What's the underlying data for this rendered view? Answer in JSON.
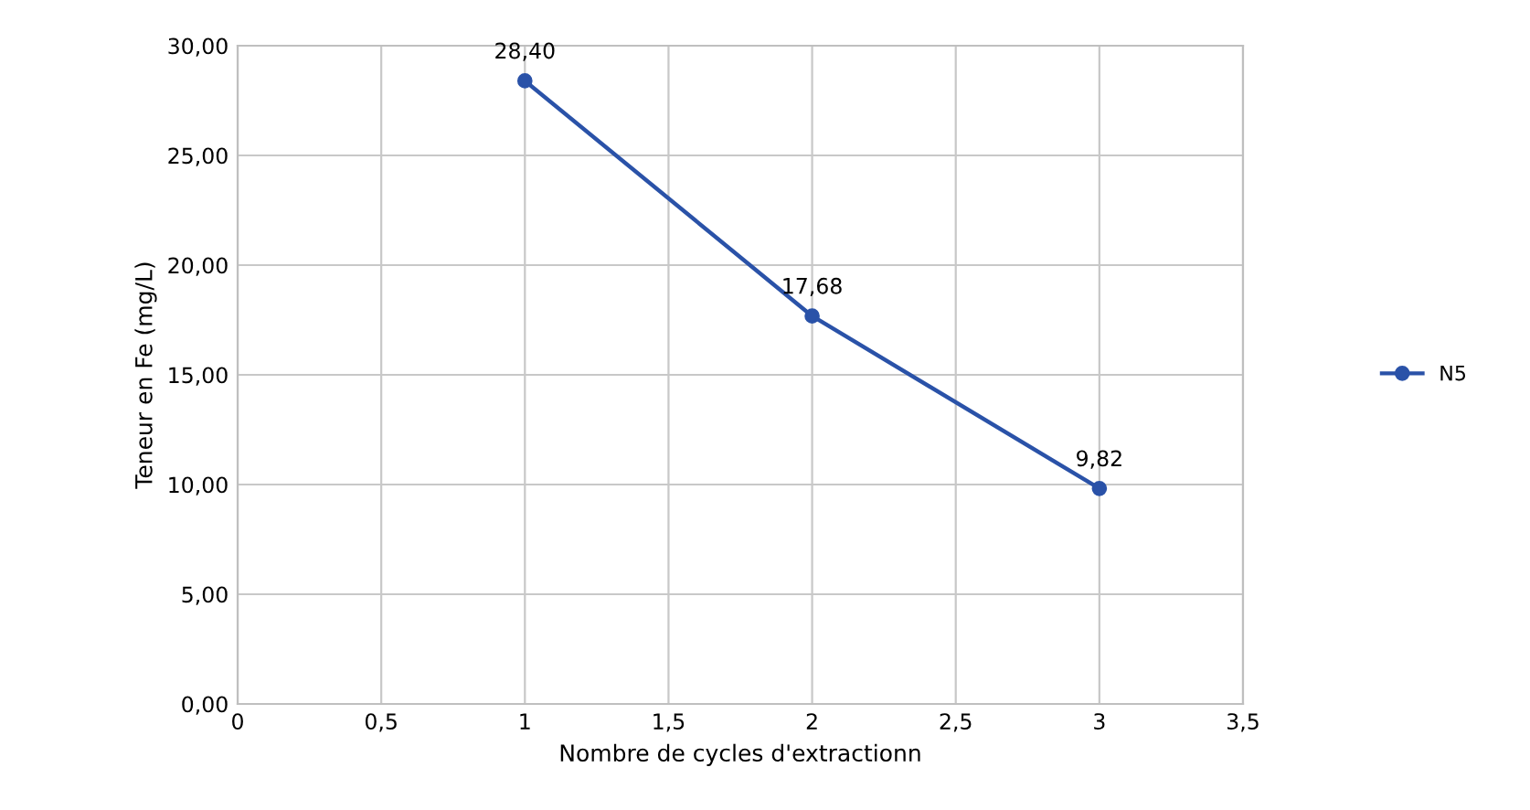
{
  "chart_data": {
    "type": "line",
    "xlabel": "Nombre de cycles d'extractionn",
    "ylabel": "Teneur en Fe (mg/L)",
    "x": [
      1,
      2,
      3
    ],
    "series": [
      {
        "name": "N5",
        "color": "#2a52a8",
        "values": [
          28.4,
          17.68,
          9.82
        ],
        "value_labels": [
          "28,40",
          "17,68",
          "9,82"
        ]
      }
    ],
    "xlim": [
      0,
      3.5
    ],
    "xticks": [
      0,
      {
        "value": 0.5,
        "label": "0,5"
      },
      1,
      {
        "value": 1.5,
        "label": "1,5"
      },
      2,
      {
        "value": 2.5,
        "label": "2,5"
      },
      3,
      {
        "value": 3.5,
        "label": "3,5"
      }
    ],
    "ylim": [
      0,
      30
    ],
    "yticks": [
      {
        "value": 0,
        "label": "0,00"
      },
      {
        "value": 5,
        "label": "5,00"
      },
      {
        "value": 10,
        "label": "10,00"
      },
      {
        "value": 15,
        "label": "15,00"
      },
      {
        "value": 20,
        "label": "20,00"
      },
      {
        "value": 25,
        "label": "25,00"
      },
      {
        "value": 30,
        "label": "30,00"
      }
    ],
    "grid": true,
    "legend": "right",
    "marker": "circle",
    "line_style": "solid"
  }
}
